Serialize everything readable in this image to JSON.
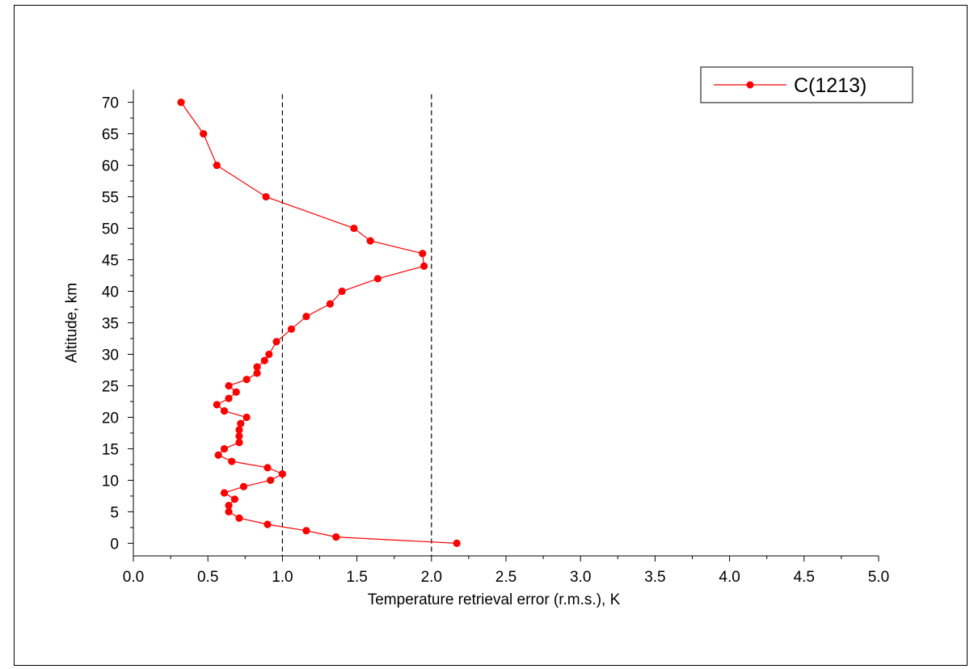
{
  "chart_data": {
    "type": "line",
    "xlabel": "Temperature retrieval error (r.m.s.), K",
    "ylabel": "Altitude, km",
    "xlim": [
      0,
      5
    ],
    "ylim": [
      -2,
      72
    ],
    "x_ticks": [
      "0.0",
      "0.5",
      "1.0",
      "1.5",
      "2.0",
      "2.5",
      "3.0",
      "3.5",
      "4.0",
      "4.5",
      "5.0"
    ],
    "y_ticks": [
      "0",
      "5",
      "10",
      "15",
      "20",
      "25",
      "30",
      "35",
      "40",
      "45",
      "50",
      "55",
      "60",
      "65",
      "70"
    ],
    "reference_lines_x": [
      1.0,
      2.0
    ],
    "grid": false,
    "legend_position": "top-right",
    "marker_color": "#ff0000",
    "series": [
      {
        "name": "C(1213)",
        "color": "#ff0000",
        "points": [
          [
            2.17,
            0
          ],
          [
            1.36,
            1
          ],
          [
            1.16,
            2
          ],
          [
            0.9,
            3
          ],
          [
            0.71,
            4
          ],
          [
            0.64,
            5
          ],
          [
            0.64,
            6
          ],
          [
            0.68,
            7
          ],
          [
            0.61,
            8
          ],
          [
            0.74,
            9
          ],
          [
            0.92,
            10
          ],
          [
            1.0,
            11
          ],
          [
            0.9,
            12
          ],
          [
            0.66,
            13
          ],
          [
            0.57,
            14
          ],
          [
            0.61,
            15
          ],
          [
            0.71,
            16
          ],
          [
            0.71,
            17
          ],
          [
            0.71,
            18
          ],
          [
            0.72,
            19
          ],
          [
            0.76,
            20
          ],
          [
            0.61,
            21
          ],
          [
            0.56,
            22
          ],
          [
            0.64,
            23
          ],
          [
            0.69,
            24
          ],
          [
            0.64,
            25
          ],
          [
            0.76,
            26
          ],
          [
            0.83,
            27
          ],
          [
            0.83,
            28
          ],
          [
            0.88,
            29
          ],
          [
            0.91,
            30
          ],
          [
            0.96,
            32
          ],
          [
            1.06,
            34
          ],
          [
            1.16,
            36
          ],
          [
            1.32,
            38
          ],
          [
            1.4,
            40
          ],
          [
            1.64,
            42
          ],
          [
            1.95,
            44
          ],
          [
            1.94,
            46
          ],
          [
            1.59,
            48
          ],
          [
            1.48,
            50
          ],
          [
            0.89,
            55
          ],
          [
            0.56,
            60
          ],
          [
            0.47,
            65
          ],
          [
            0.32,
            70
          ]
        ]
      }
    ]
  }
}
